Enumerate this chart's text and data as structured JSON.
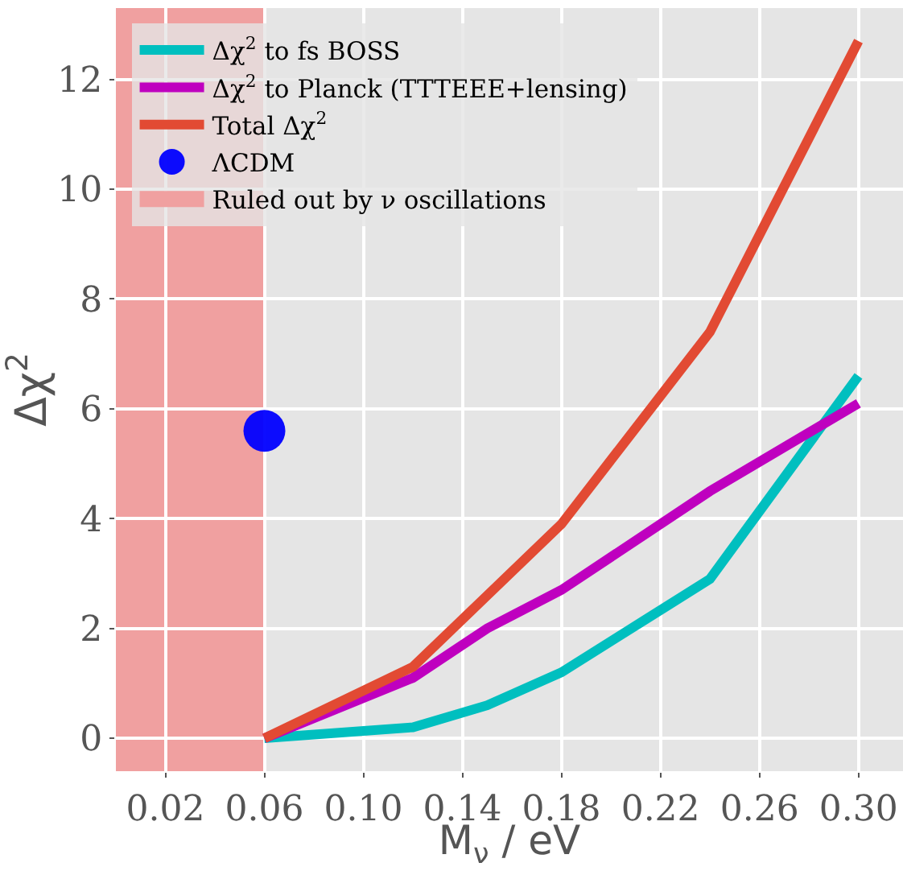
{
  "chart_data": {
    "type": "line",
    "xlabel": "M$_{ν}$ / eV",
    "ylabel": "Δχ$^{2}$",
    "xlim": [
      0.0,
      0.318
    ],
    "xticks": [
      {
        "value": 0.02,
        "label": "0.02"
      },
      {
        "value": 0.06,
        "label": "0.06"
      },
      {
        "value": 0.1,
        "label": "0.10"
      },
      {
        "value": 0.14,
        "label": "0.14"
      },
      {
        "value": 0.18,
        "label": "0.18"
      },
      {
        "value": 0.22,
        "label": "0.22"
      },
      {
        "value": 0.26,
        "label": "0.26"
      },
      {
        "value": 0.3,
        "label": "0.30"
      }
    ],
    "ylim": [
      -0.6,
      13.3
    ],
    "yticks": [
      0,
      2,
      4,
      6,
      8,
      10,
      12
    ],
    "grid": true,
    "legend": "top left",
    "marker": "none",
    "line_style": "solid",
    "series": [
      {
        "name": "Δχ$^{2}$ to fs BOSS",
        "color": "#00bfbf",
        "x": [
          0.06,
          0.12,
          0.15,
          0.18,
          0.24,
          0.3
        ],
        "values": [
          0,
          0.2,
          0.6,
          1.2,
          2.9,
          6.6
        ]
      },
      {
        "name": "Δχ$^{2}$ to Planck (TTTEEE+lensing)",
        "color": "#bf00bf",
        "x": [
          0.06,
          0.12,
          0.15,
          0.18,
          0.24,
          0.3
        ],
        "values": [
          0,
          1.1,
          2.0,
          2.7,
          4.5,
          6.1
        ]
      },
      {
        "name": "Total Δχ$^{2}$",
        "color": "#e24a33",
        "x": [
          0.06,
          0.12,
          0.15,
          0.18,
          0.24,
          0.3
        ],
        "values": [
          0,
          1.3,
          2.6,
          3.9,
          7.4,
          12.7
        ]
      },
      {
        "name": "ΛCDM",
        "type": "scatter",
        "marker": "circle",
        "color": "#0000ff",
        "x": [
          0.06
        ],
        "values": [
          5.6
        ]
      }
    ],
    "bands": [
      {
        "axis": "x",
        "from": 0.0,
        "to": 0.06,
        "label": "Ruled out by ν oscillations",
        "color": "#f0a0a0"
      }
    ]
  }
}
